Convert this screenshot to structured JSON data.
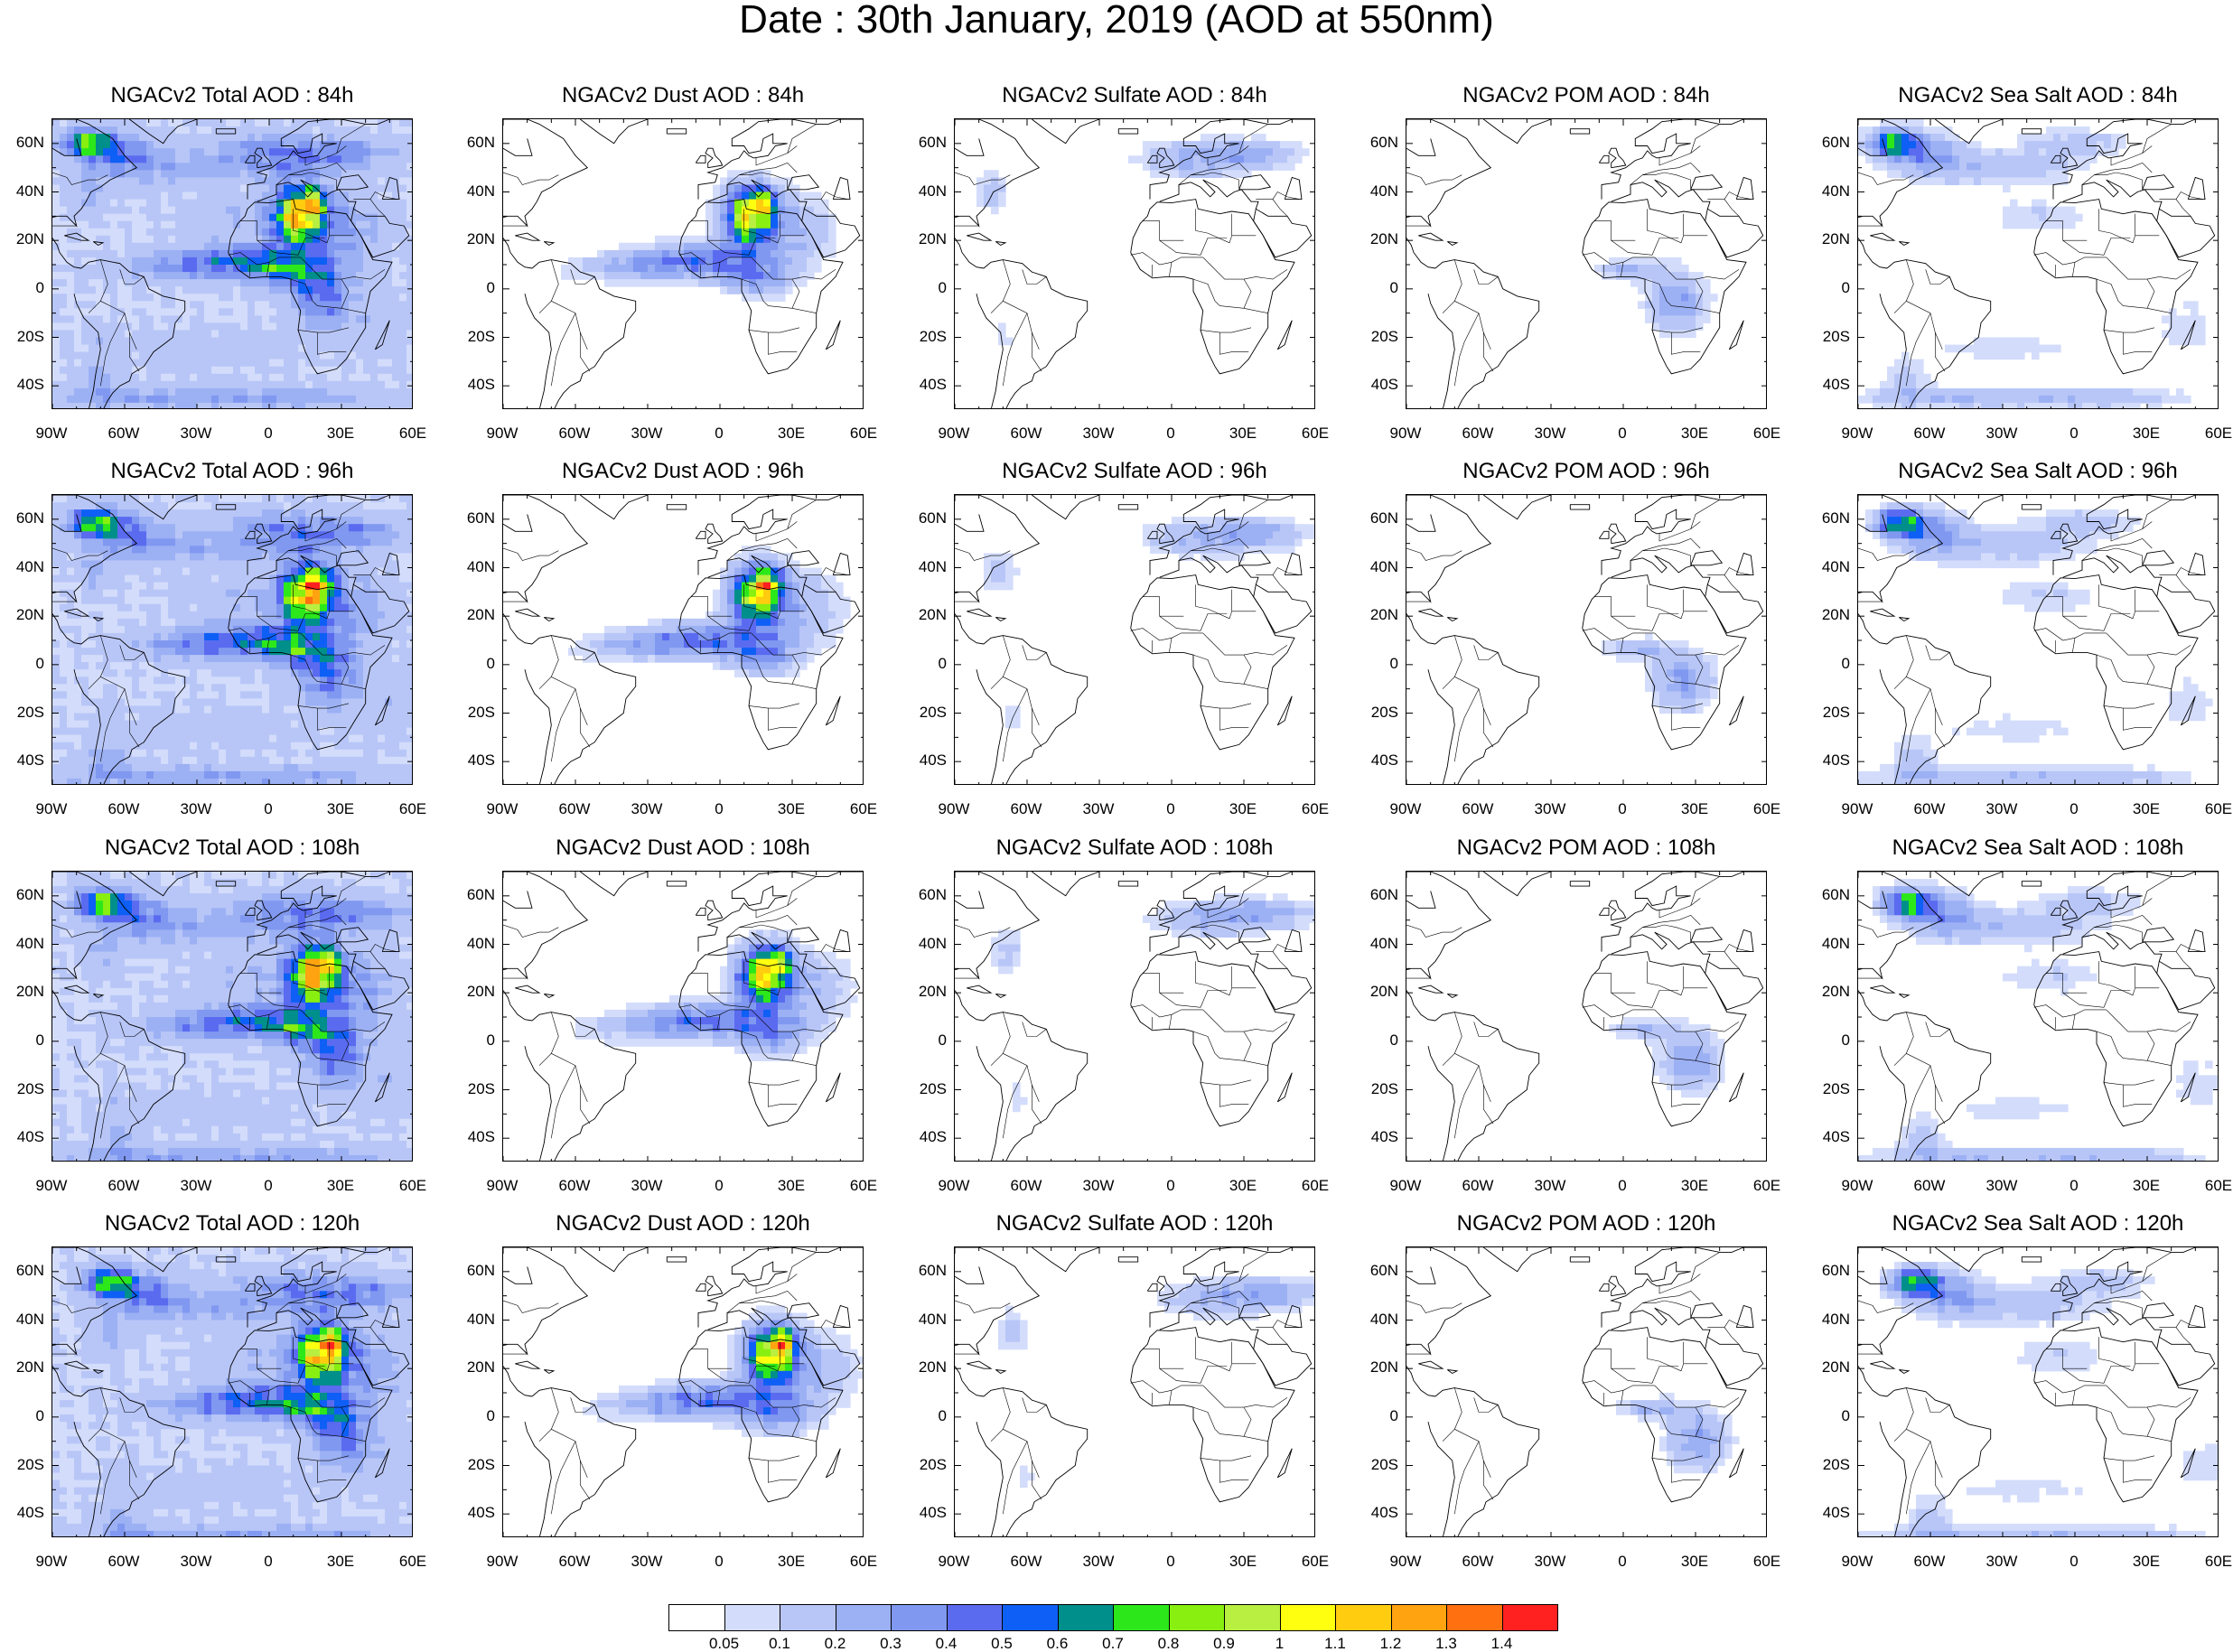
{
  "title": "Date : 30th January, 2019 (AOD at 550nm)",
  "colors": {
    "levels": [
      "#ffffff",
      "#d3dcfb",
      "#b8c6f7",
      "#9cb0f4",
      "#8098f0",
      "#5a6bf0",
      "#0e5ff5",
      "#008f8a",
      "#2ce81a",
      "#88ef10",
      "#b9ef40",
      "#ffff10",
      "#ffcc10",
      "#ffa410",
      "#ff7010",
      "#ff2020"
    ]
  },
  "colorbar": {
    "labels": [
      "0.05",
      "0.1",
      "0.2",
      "0.3",
      "0.4",
      "0.5",
      "0.6",
      "0.7",
      "0.8",
      "0.9",
      "1",
      "1.1",
      "1.2",
      "1.3",
      "1.4"
    ]
  },
  "axes": {
    "lat_labels": [
      "60N",
      "40N",
      "20N",
      "0",
      "20S",
      "40S"
    ],
    "lon_labels": [
      "90W",
      "60W",
      "30W",
      "0",
      "30E",
      "60E"
    ]
  },
  "panels": [
    {
      "title": "NGACv2 Total AOD : 84h",
      "species": "total"
    },
    {
      "title": "NGACv2 Dust AOD : 84h",
      "species": "dust"
    },
    {
      "title": "NGACv2 Sulfate AOD : 84h",
      "species": "sulfate"
    },
    {
      "title": "NGACv2 POM AOD : 84h",
      "species": "pom"
    },
    {
      "title": "NGACv2 Sea Salt AOD : 84h",
      "species": "seasalt"
    },
    {
      "title": "NGACv2 Total AOD : 96h",
      "species": "total"
    },
    {
      "title": "NGACv2 Dust AOD : 96h",
      "species": "dust"
    },
    {
      "title": "NGACv2 Sulfate AOD : 96h",
      "species": "sulfate"
    },
    {
      "title": "NGACv2 POM AOD : 96h",
      "species": "pom"
    },
    {
      "title": "NGACv2 Sea Salt AOD : 96h",
      "species": "seasalt"
    },
    {
      "title": "NGACv2 Total AOD : 108h",
      "species": "total"
    },
    {
      "title": "NGACv2 Dust AOD : 108h",
      "species": "dust"
    },
    {
      "title": "NGACv2 Sulfate AOD : 108h",
      "species": "sulfate"
    },
    {
      "title": "NGACv2 POM AOD : 108h",
      "species": "pom"
    },
    {
      "title": "NGACv2 Sea Salt AOD : 108h",
      "species": "seasalt"
    },
    {
      "title": "NGACv2 Total AOD : 120h",
      "species": "total"
    },
    {
      "title": "NGACv2 Dust AOD : 120h",
      "species": "dust"
    },
    {
      "title": "NGACv2 Sulfate AOD : 120h",
      "species": "sulfate"
    },
    {
      "title": "NGACv2 POM AOD : 120h",
      "species": "pom"
    },
    {
      "title": "NGACv2 Sea Salt  AOD : 120h",
      "species": "seasalt"
    }
  ]
}
